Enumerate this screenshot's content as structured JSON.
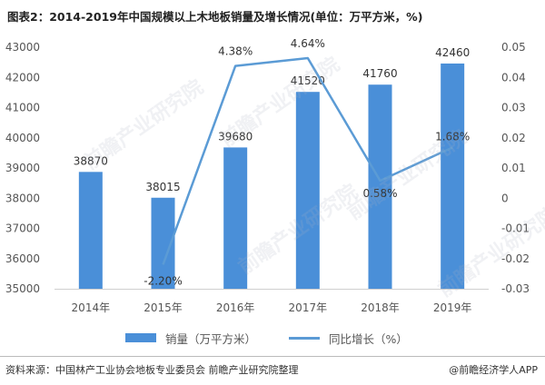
{
  "title": "图表2：2014-2019年中国规模以上木地板销量及增长情况(单位：万平方米，%)",
  "chart_data": {
    "type": "bar",
    "categories": [
      "2014年",
      "2015年",
      "2016年",
      "2017年",
      "2018年",
      "2019年"
    ],
    "series": [
      {
        "name": "销量（万平方米）",
        "type": "bar",
        "axis": "left",
        "values": [
          38870,
          38015,
          39680,
          41520,
          41760,
          42460
        ],
        "labels": [
          "38870",
          "38015",
          "39680",
          "41520",
          "41760",
          "42460"
        ]
      },
      {
        "name": "同比增长（%）",
        "type": "line",
        "axis": "right",
        "values": [
          null,
          -0.022,
          0.0438,
          0.0464,
          0.0058,
          0.0168
        ],
        "labels": [
          "",
          "-2.20%",
          "4.38%",
          "4.64%",
          "0.58%",
          "1.68%"
        ]
      }
    ],
    "ylim_left": [
      35000,
      43000
    ],
    "yticks_left": [
      "35000",
      "36000",
      "37000",
      "38000",
      "39000",
      "40000",
      "41000",
      "42000",
      "43000"
    ],
    "ylim_right": [
      -0.03,
      0.05
    ],
    "yticks_right": [
      "-0.03",
      "-0.02",
      "-0.01",
      "0",
      "0.01",
      "0.02",
      "0.03",
      "0.04",
      "0.05"
    ],
    "grid": false,
    "legend": "bottom",
    "colors": {
      "bar": "#4a8fd8",
      "line": "#5b9bd5"
    }
  },
  "footer": {
    "source": "资料来源：中国林产工业协会地板专业委员会 前瞻产业研究院整理",
    "credit": "@前瞻经济学人APP"
  },
  "watermark": "前瞻产业研究院"
}
